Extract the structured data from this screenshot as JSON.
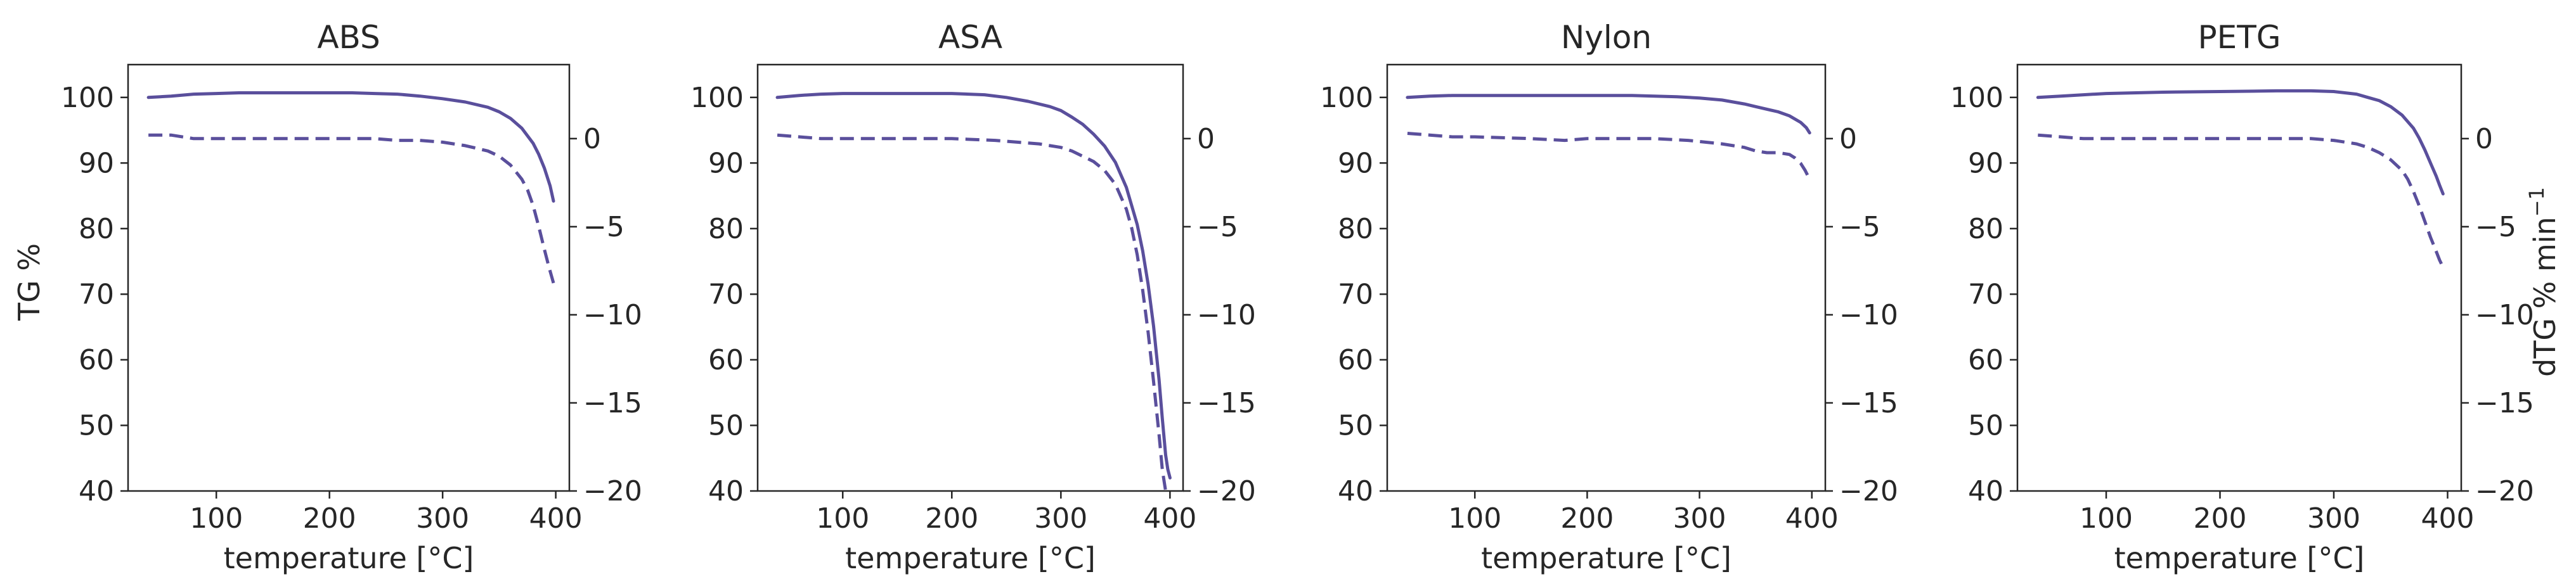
{
  "figure": {
    "left_ylabel": "TG %",
    "right_ylabel": "dTG % min",
    "right_ylabel_sup": "−1",
    "line_color": "#5a4f9c"
  },
  "chart_data": [
    {
      "type": "line",
      "title": "ABS",
      "xlabel": "temperature [°C]",
      "xlim": [
        22,
        412
      ],
      "ylim": [
        40,
        105
      ],
      "y2lim": [
        -20,
        4.2
      ],
      "xticks": [
        100,
        200,
        300,
        400
      ],
      "yticks": [
        40,
        50,
        60,
        70,
        80,
        90,
        100
      ],
      "y2ticks": [
        -20,
        -15,
        -10,
        -5,
        0
      ],
      "tg": {
        "x": [
          40,
          60,
          80,
          100,
          120,
          140,
          160,
          180,
          200,
          220,
          240,
          260,
          280,
          300,
          320,
          340,
          350,
          360,
          370,
          380,
          385,
          390,
          395,
          398
        ],
        "y": [
          100.0,
          100.2,
          100.5,
          100.6,
          100.7,
          100.7,
          100.7,
          100.7,
          100.7,
          100.7,
          100.6,
          100.5,
          100.2,
          99.8,
          99.3,
          98.5,
          97.8,
          96.8,
          95.3,
          93.0,
          91.3,
          89.2,
          86.5,
          84.2
        ]
      },
      "dtg": {
        "x": [
          40,
          60,
          80,
          100,
          150,
          200,
          240,
          260,
          280,
          300,
          320,
          340,
          350,
          360,
          370,
          375,
          380,
          385,
          390,
          394,
          398
        ],
        "y": [
          0.2,
          0.2,
          0.0,
          0.0,
          0.0,
          0.0,
          0.0,
          -0.1,
          -0.1,
          -0.2,
          -0.4,
          -0.7,
          -1.0,
          -1.5,
          -2.3,
          -2.9,
          -3.8,
          -5.0,
          -6.3,
          -7.3,
          -8.2
        ]
      }
    },
    {
      "type": "line",
      "title": "ASA",
      "xlabel": "temperature [°C]",
      "xlim": [
        22,
        412
      ],
      "ylim": [
        40,
        105
      ],
      "y2lim": [
        -20,
        4.2
      ],
      "xticks": [
        100,
        200,
        300,
        400
      ],
      "yticks": [
        40,
        50,
        60,
        70,
        80,
        90,
        100
      ],
      "y2ticks": [
        -20,
        -15,
        -10,
        -5,
        0
      ],
      "tg": {
        "x": [
          40,
          60,
          80,
          100,
          150,
          200,
          230,
          250,
          270,
          290,
          300,
          310,
          320,
          330,
          340,
          350,
          360,
          370,
          375,
          380,
          385,
          390,
          393,
          396,
          398,
          400
        ],
        "y": [
          100.0,
          100.3,
          100.5,
          100.6,
          100.6,
          100.6,
          100.4,
          100.0,
          99.4,
          98.6,
          98.0,
          97.0,
          95.9,
          94.4,
          92.6,
          90.1,
          86.3,
          80.6,
          76.6,
          71.5,
          65.1,
          57.0,
          51.0,
          45.5,
          43.3,
          42.0
        ]
      },
      "dtg": {
        "x": [
          40,
          60,
          80,
          100,
          150,
          200,
          240,
          260,
          280,
          300,
          310,
          320,
          330,
          340,
          350,
          360,
          365,
          370,
          375,
          380,
          385,
          390,
          393,
          396
        ],
        "y": [
          0.2,
          0.1,
          0.0,
          0.0,
          0.0,
          0.0,
          -0.1,
          -0.2,
          -0.3,
          -0.5,
          -0.7,
          -1.0,
          -1.3,
          -1.8,
          -2.6,
          -4.0,
          -5.1,
          -6.6,
          -8.6,
          -11.0,
          -13.8,
          -16.8,
          -18.8,
          -20.0
        ]
      }
    },
    {
      "type": "line",
      "title": "Nylon",
      "xlabel": "temperature [°C]",
      "xlim": [
        22,
        412
      ],
      "ylim": [
        40,
        105
      ],
      "y2lim": [
        -20,
        4.2
      ],
      "xticks": [
        100,
        200,
        300,
        400
      ],
      "yticks": [
        40,
        50,
        60,
        70,
        80,
        90,
        100
      ],
      "y2ticks": [
        -20,
        -15,
        -10,
        -5,
        0
      ],
      "tg": {
        "x": [
          40,
          60,
          80,
          100,
          150,
          200,
          240,
          260,
          280,
          300,
          320,
          340,
          350,
          360,
          370,
          380,
          390,
          395,
          398
        ],
        "y": [
          100.0,
          100.2,
          100.3,
          100.3,
          100.3,
          100.3,
          100.3,
          100.2,
          100.1,
          99.9,
          99.6,
          99.0,
          98.6,
          98.2,
          97.8,
          97.2,
          96.2,
          95.4,
          94.6
        ]
      },
      "dtg": {
        "x": [
          40,
          60,
          80,
          100,
          150,
          180,
          200,
          230,
          260,
          290,
          320,
          340,
          350,
          360,
          370,
          380,
          385,
          390,
          394,
          398
        ],
        "y": [
          0.3,
          0.2,
          0.1,
          0.1,
          0.0,
          -0.1,
          0.0,
          0.0,
          0.0,
          -0.1,
          -0.3,
          -0.5,
          -0.7,
          -0.8,
          -0.8,
          -0.9,
          -1.1,
          -1.4,
          -1.8,
          -2.3
        ]
      }
    },
    {
      "type": "line",
      "title": "PETG",
      "xlabel": "temperature [°C]",
      "xlim": [
        22,
        412
      ],
      "ylim": [
        40,
        105
      ],
      "y2lim": [
        -20,
        4.2
      ],
      "xticks": [
        100,
        200,
        300,
        400
      ],
      "yticks": [
        40,
        50,
        60,
        70,
        80,
        90,
        100
      ],
      "y2ticks": [
        -20,
        -15,
        -10,
        -5,
        0
      ],
      "tg": {
        "x": [
          40,
          60,
          80,
          100,
          150,
          200,
          250,
          280,
          300,
          320,
          330,
          340,
          350,
          360,
          370,
          375,
          380,
          385,
          390,
          393,
          396
        ],
        "y": [
          100.0,
          100.2,
          100.4,
          100.6,
          100.8,
          100.9,
          101.0,
          101.0,
          100.9,
          100.5,
          100.0,
          99.5,
          98.6,
          97.3,
          95.3,
          93.8,
          92.0,
          90.0,
          88.0,
          86.6,
          85.3
        ]
      },
      "dtg": {
        "x": [
          40,
          60,
          80,
          100,
          150,
          200,
          250,
          280,
          300,
          320,
          330,
          340,
          350,
          360,
          365,
          370,
          375,
          380,
          385,
          390,
          393,
          396
        ],
        "y": [
          0.2,
          0.1,
          0.0,
          0.0,
          0.0,
          0.0,
          0.0,
          0.0,
          -0.1,
          -0.3,
          -0.5,
          -0.8,
          -1.2,
          -1.8,
          -2.3,
          -3.0,
          -3.8,
          -4.7,
          -5.6,
          -6.4,
          -6.9,
          -7.3
        ]
      }
    }
  ]
}
